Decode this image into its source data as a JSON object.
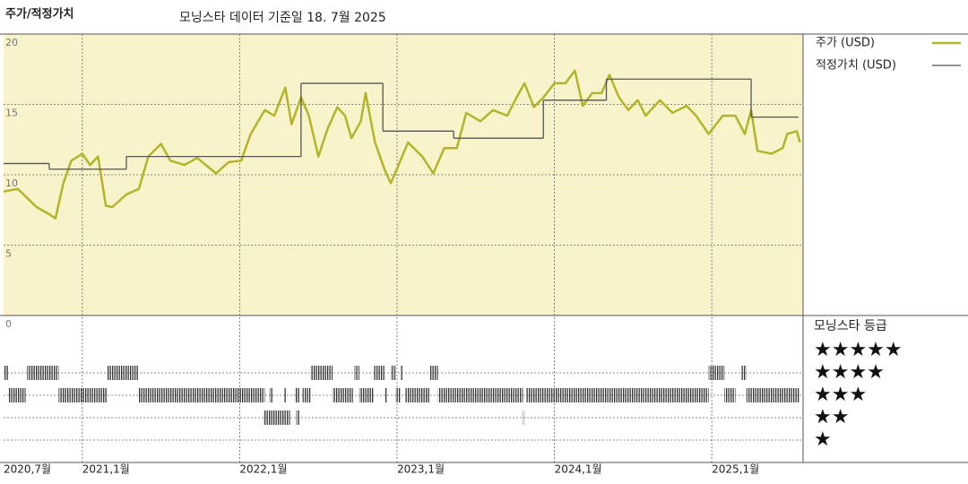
{
  "header": {
    "title": "주가/적정가치",
    "date_note": "모닝스타 데이터 기준일 18. 7월 2025"
  },
  "chart_data": {
    "type": "line",
    "xlim": [
      2020.5,
      2025.58
    ],
    "ylim": [
      0,
      20
    ],
    "xticks": [
      {
        "value": 2020.5,
        "label": "2020,7월"
      },
      {
        "value": 2021,
        "label": "2021,1월"
      },
      {
        "value": 2022,
        "label": "2022,1월"
      },
      {
        "value": 2023,
        "label": "2023,1월"
      },
      {
        "value": 2024,
        "label": "2024,1월"
      },
      {
        "value": 2025,
        "label": "2025,1월"
      }
    ],
    "yticks": [
      0,
      5,
      10,
      15,
      20
    ],
    "grid": true,
    "background": "#f8f3cb",
    "series": [
      {
        "name": "주가 (USD)",
        "color": "#b2b52a",
        "x": [
          2020.5,
          2020.59,
          2020.71,
          2020.79,
          2020.83,
          2020.88,
          2020.93,
          2021.0,
          2021.05,
          2021.1,
          2021.15,
          2021.19,
          2021.28,
          2021.36,
          2021.42,
          2021.5,
          2021.56,
          2021.65,
          2021.73,
          2021.85,
          2021.93,
          2022.01,
          2022.07,
          2022.16,
          2022.22,
          2022.29,
          2022.33,
          2022.39,
          2022.44,
          2022.5,
          2022.56,
          2022.62,
          2022.67,
          2022.71,
          2022.77,
          2022.8,
          2022.86,
          2022.92,
          2022.96,
          2023.01,
          2023.07,
          2023.16,
          2023.23,
          2023.3,
          2023.38,
          2023.44,
          2023.53,
          2023.61,
          2023.7,
          2023.76,
          2023.81,
          2023.87,
          2023.93,
          2024.0,
          2024.07,
          2024.13,
          2024.18,
          2024.24,
          2024.3,
          2024.35,
          2024.41,
          2024.47,
          2024.53,
          2024.58,
          2024.67,
          2024.75,
          2024.84,
          2024.9,
          2024.98,
          2025.07,
          2025.15,
          2025.21,
          2025.25,
          2025.29,
          2025.38,
          2025.45,
          2025.48,
          2025.54,
          2025.56
        ],
        "values": [
          8.8,
          9.0,
          7.7,
          7.2,
          6.9,
          9.4,
          11.0,
          11.5,
          10.7,
          11.3,
          7.8,
          7.7,
          8.6,
          9.0,
          11.3,
          12.2,
          11.0,
          10.7,
          11.2,
          10.1,
          10.9,
          11.0,
          12.9,
          14.6,
          14.2,
          16.2,
          13.6,
          15.5,
          14.2,
          11.3,
          13.3,
          14.8,
          14.2,
          12.6,
          13.8,
          15.8,
          12.3,
          10.4,
          9.4,
          10.7,
          12.3,
          11.3,
          10.1,
          11.9,
          11.9,
          14.4,
          13.8,
          14.6,
          14.2,
          15.5,
          16.5,
          14.8,
          15.5,
          16.5,
          16.5,
          17.4,
          14.9,
          15.8,
          15.8,
          17.1,
          15.5,
          14.6,
          15.3,
          14.2,
          15.3,
          14.4,
          14.9,
          14.2,
          12.9,
          14.2,
          14.2,
          12.9,
          14.6,
          11.7,
          11.5,
          11.9,
          12.9,
          13.1,
          12.3
        ]
      },
      {
        "name": "적정가치 (USD)",
        "color": "#555555",
        "step": true,
        "x": [
          2020.5,
          2020.79,
          2021.28,
          2022.39,
          2022.91,
          2023.36,
          2023.93,
          2024.33,
          2025.25,
          2025.55
        ],
        "values": [
          10.8,
          10.4,
          11.3,
          16.5,
          13.1,
          12.6,
          15.3,
          16.8,
          14.1,
          14.1
        ]
      }
    ],
    "ratings": {
      "title": "모닝스타 등급",
      "color": "#333333",
      "legend": [
        "★★★★★",
        "★★★★",
        "★★★",
        "★★",
        "★"
      ],
      "segments": [
        {
          "start": 2020.5,
          "end": 2020.53,
          "rating": 4
        },
        {
          "start": 2020.65,
          "end": 2020.85,
          "rating": 4
        },
        {
          "start": 2021.16,
          "end": 2021.36,
          "rating": 4
        },
        {
          "start": 2022.45,
          "end": 2022.59,
          "rating": 4
        },
        {
          "start": 2022.73,
          "end": 2022.76,
          "rating": 4
        },
        {
          "start": 2022.85,
          "end": 2022.92,
          "rating": 4
        },
        {
          "start": 2022.96,
          "end": 2022.99,
          "rating": 4
        },
        {
          "start": 2023.02,
          "end": 2023.04,
          "rating": 4
        },
        {
          "start": 2023.21,
          "end": 2023.26,
          "rating": 4
        },
        {
          "start": 2024.98,
          "end": 2025.08,
          "rating": 4
        },
        {
          "start": 2025.19,
          "end": 2025.22,
          "rating": 4
        },
        {
          "start": 2020.53,
          "end": 2020.64,
          "rating": 3
        },
        {
          "start": 2020.85,
          "end": 2021.16,
          "rating": 3
        },
        {
          "start": 2021.36,
          "end": 2022.16,
          "rating": 3
        },
        {
          "start": 2022.19,
          "end": 2022.21,
          "rating": 3
        },
        {
          "start": 2022.28,
          "end": 2022.3,
          "rating": 3
        },
        {
          "start": 2022.35,
          "end": 2022.38,
          "rating": 3
        },
        {
          "start": 2022.4,
          "end": 2022.45,
          "rating": 3
        },
        {
          "start": 2022.59,
          "end": 2022.72,
          "rating": 3
        },
        {
          "start": 2022.76,
          "end": 2022.85,
          "rating": 3
        },
        {
          "start": 2022.92,
          "end": 2022.94,
          "rating": 3
        },
        {
          "start": 2022.99,
          "end": 2023.02,
          "rating": 3
        },
        {
          "start": 2023.05,
          "end": 2023.21,
          "rating": 3
        },
        {
          "start": 2023.26,
          "end": 2023.8,
          "rating": 3
        },
        {
          "start": 2023.82,
          "end": 2024.98,
          "rating": 3
        },
        {
          "start": 2025.08,
          "end": 2025.15,
          "rating": 3
        },
        {
          "start": 2025.22,
          "end": 2025.56,
          "rating": 3
        },
        {
          "start": 2022.15,
          "end": 2022.32,
          "rating": 2
        },
        {
          "start": 2022.36,
          "end": 2022.38,
          "rating": 2
        },
        {
          "start": 2023.8,
          "end": 2023.81,
          "rating": 2
        }
      ]
    }
  }
}
